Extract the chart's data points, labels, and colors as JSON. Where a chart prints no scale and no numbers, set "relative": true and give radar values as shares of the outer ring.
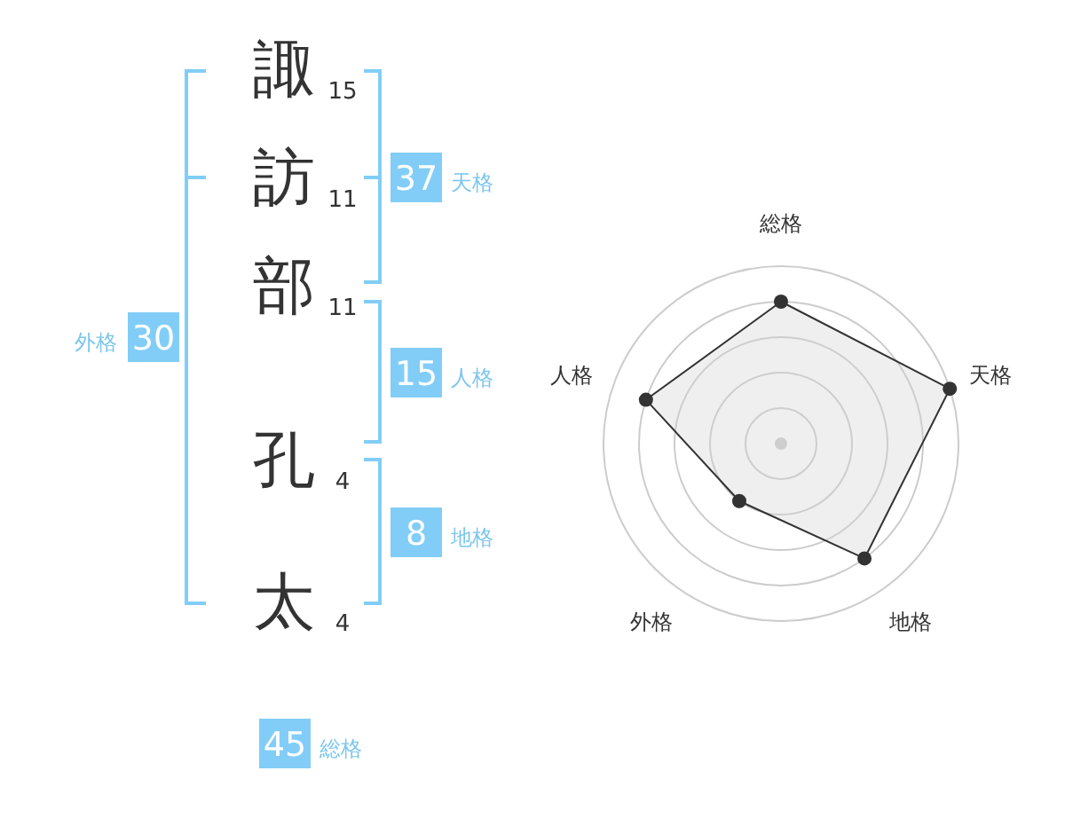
{
  "chart_data": [
    {
      "type": "other",
      "categories": [
        "諏",
        "訪",
        "部",
        "孔",
        "太"
      ],
      "values": [
        15,
        11,
        11,
        4,
        4
      ],
      "data_labels": true,
      "annotations": [
        "37",
        "天格",
        "15",
        "人格",
        "8",
        "地格",
        "30",
        "外格",
        "45",
        "総格"
      ]
    },
    {
      "type": "radar",
      "categories": [
        "総格",
        "天格",
        "地格",
        "外格",
        "人格"
      ],
      "relative": true,
      "grid": true,
      "marker": "circle",
      "series": [
        {
          "color": "#333333",
          "values": [
            0.8,
            1,
            0.8,
            0.4,
            0.8
          ]
        }
      ]
    }
  ]
}
